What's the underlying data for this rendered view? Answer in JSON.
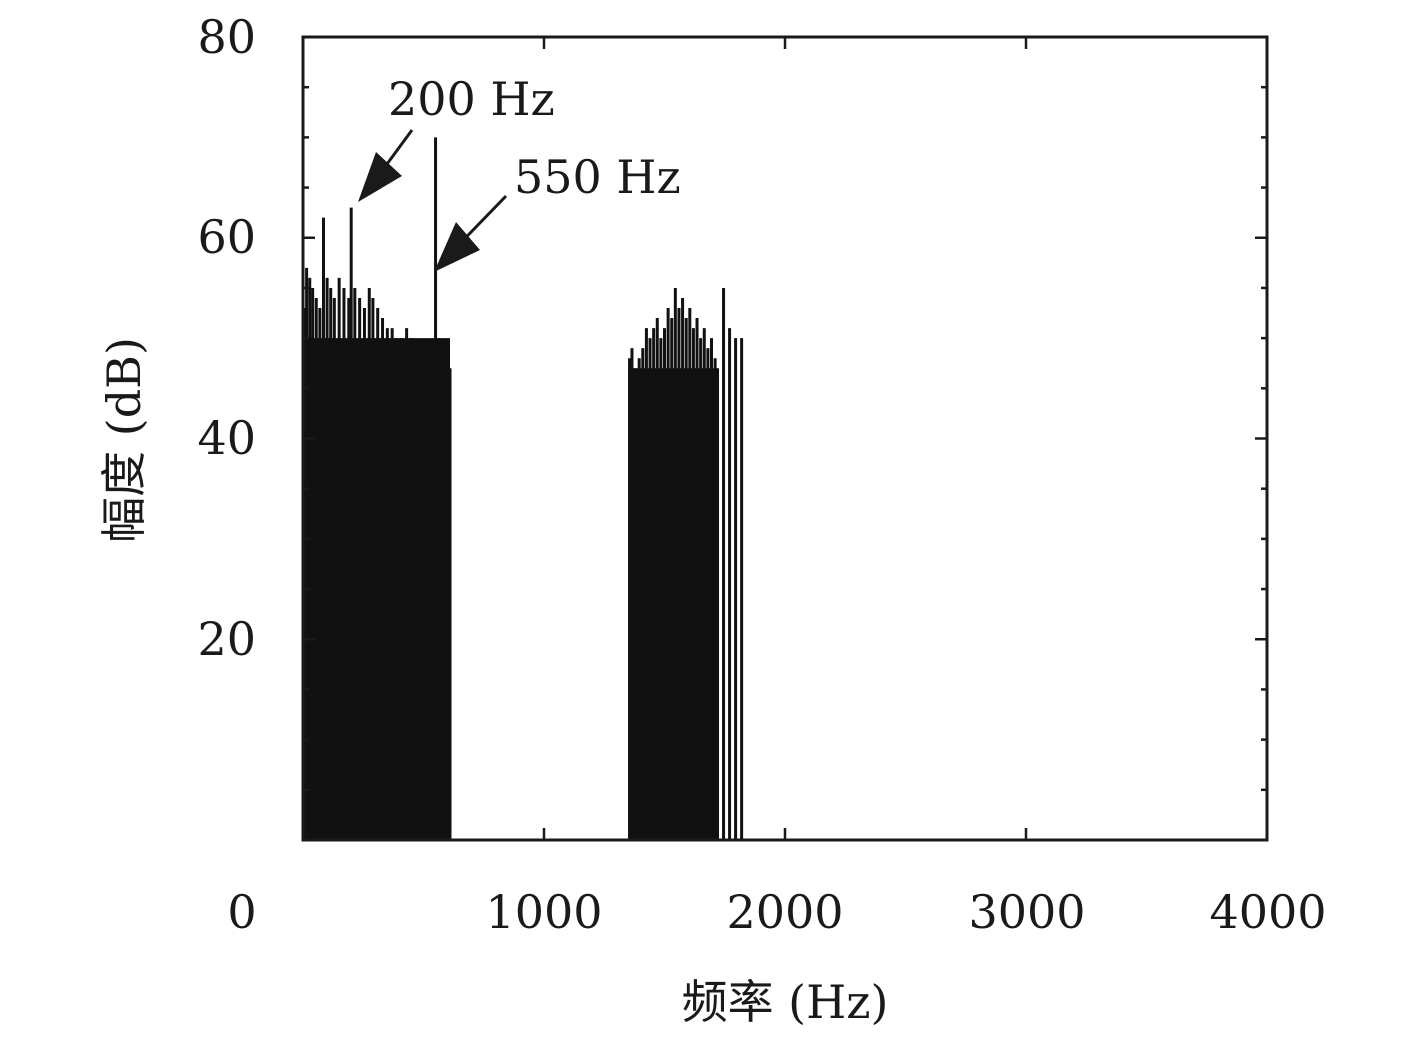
{
  "chart_data": {
    "type": "bar",
    "title": "",
    "xlabel": "频率 (Hz)",
    "ylabel": "幅度 (dB)",
    "xlim": [
      0,
      4000
    ],
    "ylim": [
      0,
      80
    ],
    "xticks": [
      0,
      1000,
      2000,
      3000,
      4000
    ],
    "yticks": [
      20,
      40,
      60,
      80
    ],
    "xtick_labels": [
      "0",
      "1000",
      "2000",
      "3000",
      "4000"
    ],
    "ytick_labels": [
      "20",
      "40",
      "60",
      "80"
    ],
    "grid": false,
    "legend": "none",
    "color": "#111111",
    "bands": [
      {
        "x_start": 0,
        "x_end": 610,
        "level_db": 50
      },
      {
        "x_start": 1350,
        "x_end": 1720,
        "level_db": 47
      }
    ],
    "series": [
      {
        "x": [
          5,
          15,
          28,
          40,
          55,
          70,
          85,
          100,
          115,
          130,
          150,
          170,
          190,
          200,
          215,
          235,
          255,
          275,
          290,
          310,
          330,
          350,
          370,
          390,
          410,
          430,
          450,
          470,
          490,
          510,
          530,
          550,
          565,
          580,
          600,
          610,
          1355,
          1365,
          1380,
          1395,
          1410,
          1425,
          1440,
          1455,
          1470,
          1485,
          1500,
          1515,
          1530,
          1545,
          1560,
          1575,
          1590,
          1605,
          1620,
          1635,
          1650,
          1665,
          1680,
          1695,
          1710,
          1720,
          1745,
          1770,
          1795,
          1820
        ],
        "y": [
          53,
          57,
          56,
          55,
          54,
          53,
          62,
          56,
          55,
          54,
          56,
          55,
          54,
          63,
          55,
          54,
          53,
          55,
          54,
          53,
          52,
          51,
          51,
          50,
          50,
          51,
          50,
          49,
          48,
          49,
          48,
          70,
          50,
          48,
          47,
          47,
          48,
          49,
          47,
          48,
          49,
          51,
          50,
          51,
          52,
          50,
          51,
          53,
          52,
          55,
          53,
          54,
          52,
          53,
          51,
          52,
          50,
          51,
          49,
          50,
          48,
          47,
          55,
          51,
          50,
          50
        ]
      }
    ],
    "annotations": [
      {
        "text": "200 Hz",
        "x": 200,
        "y": 63
      },
      {
        "text": "550 Hz",
        "x": 550,
        "y": 57
      }
    ]
  }
}
